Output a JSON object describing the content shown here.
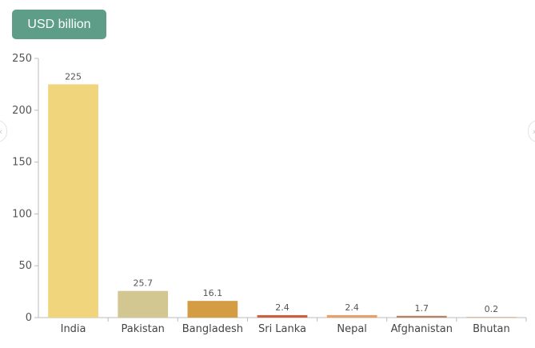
{
  "unit_badge": "USD billion",
  "nav": {
    "prev_icon": "chevron-left-icon",
    "next_icon": "chevron-right-icon"
  },
  "colors": {
    "badge": "#5e9e88",
    "axis": "#bbbbbb",
    "bars": [
      "#f0d57c",
      "#d3c791",
      "#d59d43",
      "#c8623c",
      "#e6a06a",
      "#b68262",
      "#d4ad82"
    ]
  },
  "chart_data": {
    "type": "bar",
    "title": "",
    "xlabel": "",
    "ylabel": "",
    "ylim": [
      0,
      250
    ],
    "yticks": [
      0,
      50,
      100,
      150,
      200,
      250
    ],
    "grid": false,
    "categories": [
      "India",
      "Pakistan",
      "Bangladesh",
      "Sri Lanka",
      "Nepal",
      "Afghanistan",
      "Bhutan"
    ],
    "values": [
      225,
      25.7,
      16.1,
      2.4,
      2.4,
      1.7,
      0.2
    ],
    "value_labels": [
      "225",
      "25.7",
      "16.1",
      "2.4",
      "2.4",
      "1.7",
      "0.2"
    ]
  }
}
